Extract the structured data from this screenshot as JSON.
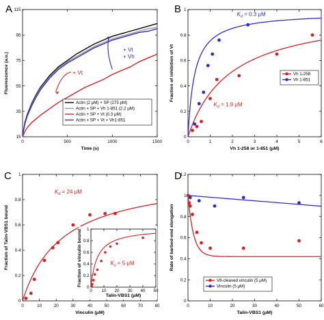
{
  "colors": {
    "red": "#d62020",
    "blue": "#2b2bcc",
    "black": "#000000",
    "gray": "#9a9a9a"
  },
  "chart_data": [
    {
      "panel": "A",
      "type": "line",
      "xlabel": "Time (s)",
      "ylabel": "Fluorescence (a.u.)",
      "xlim": [
        0,
        1500
      ],
      "ylim": [
        15,
        115
      ],
      "xticks": [
        "0",
        "500",
        "1000",
        "1500"
      ],
      "yticks": [
        "15",
        "35",
        "55",
        "75",
        "95",
        "115"
      ],
      "legend_position": "bottom-right",
      "series": [
        {
          "name": "Actin (2 μM) + SP (275 pM)",
          "color": "#000000",
          "x": [
            0,
            25,
            50,
            100,
            150,
            200,
            300,
            400,
            500,
            600,
            700,
            800,
            900,
            1000,
            1100,
            1200,
            1300,
            1400,
            1500
          ],
          "values": [
            16,
            26,
            32,
            41,
            48,
            54,
            63,
            70,
            75,
            80,
            84,
            88,
            91,
            94,
            96,
            98,
            100,
            102,
            104
          ]
        },
        {
          "name": "Actin + SP + Vh 1-851 (2.2 μM)",
          "color": "#9a9a9a",
          "x": [
            0,
            25,
            50,
            100,
            150,
            200,
            300,
            400,
            500,
            600,
            700,
            800,
            900,
            1000,
            1100,
            1200,
            1300,
            1400,
            1500
          ],
          "values": [
            16,
            25,
            31,
            40,
            47,
            53,
            62,
            69,
            74,
            78,
            82,
            86,
            89,
            92,
            94,
            96,
            98,
            100,
            101
          ]
        },
        {
          "name": "Actin + SP + Vt (0.3 μM)",
          "color": "#d62020",
          "x": [
            0,
            25,
            50,
            100,
            150,
            200,
            300,
            400,
            500,
            600,
            700,
            800,
            900,
            1000,
            1100,
            1200,
            1300,
            1400,
            1500
          ],
          "values": [
            15,
            19,
            22,
            26,
            29,
            32,
            37,
            42,
            46,
            50,
            54,
            57,
            60,
            64,
            67,
            70,
            74,
            77,
            80
          ]
        },
        {
          "name": "Actin + SP + Vt + Vh1-851",
          "color": "#2b2bcc",
          "x": [
            0,
            25,
            50,
            100,
            150,
            200,
            300,
            400,
            500,
            600,
            700,
            800,
            900,
            1000,
            1100,
            1200,
            1300,
            1400,
            1500
          ],
          "values": [
            16,
            25,
            31,
            39,
            46,
            52,
            61,
            68,
            73,
            77,
            81,
            85,
            88,
            91,
            93,
            95,
            97,
            98,
            100
          ]
        }
      ],
      "annotations": [
        "+ Vt",
        "+ Vt\n+ Vh"
      ]
    },
    {
      "panel": "B",
      "type": "scatter",
      "xlabel": "Vh 1-258 or 1-851 (μM)",
      "ylabel": "Fraction of inhibition of Vt",
      "xlim": [
        0,
        6
      ],
      "ylim": [
        0,
        1
      ],
      "xticks": [
        "0",
        "1",
        "2",
        "3",
        "4",
        "5",
        "6"
      ],
      "yticks": [
        "0",
        "0.2",
        "0.4",
        "0.6",
        "0.8",
        "1"
      ],
      "legend_position": "center-right",
      "series": [
        {
          "name": "Vh 1-258",
          "color": "#d62020",
          "kd": "K_d = 1.9 μM",
          "x": [
            0.2,
            0.4,
            0.6,
            1.0,
            1.3,
            2.3,
            4.0,
            5.6
          ],
          "values": [
            0.05,
            0.08,
            0.12,
            0.3,
            0.45,
            0.48,
            0.65,
            0.8
          ]
        },
        {
          "name": "Vh 1-851",
          "color": "#2b2bcc",
          "kd": "K_d = 0.3 μM",
          "x": [
            0.3,
            0.5,
            0.7,
            0.9,
            1.1,
            1.4,
            2.7
          ],
          "values": [
            0.1,
            0.26,
            0.35,
            0.56,
            0.65,
            0.76,
            0.88
          ]
        }
      ]
    },
    {
      "panel": "C",
      "type": "scatter",
      "xlabel": "Vinculin (μM)",
      "ylabel": "Fraction of Talin-VBS1 bound",
      "xlim": [
        0,
        80
      ],
      "ylim": [
        0,
        1
      ],
      "xticks": [
        "0",
        "10",
        "20",
        "30",
        "40",
        "50",
        "60",
        "70",
        "80"
      ],
      "yticks": [
        "0",
        "0.2",
        "0.4",
        "0.6",
        "0.8",
        "1"
      ],
      "kd": "K_d = 24 μM",
      "series": [
        {
          "name": "Talin-VBS1",
          "color": "#d62020",
          "x": [
            2,
            5,
            7,
            13,
            18,
            21,
            30,
            40,
            49,
            55
          ],
          "values": [
            0.02,
            0.06,
            0.17,
            0.32,
            0.42,
            0.46,
            0.6,
            0.68,
            0.69,
            0.69
          ]
        }
      ],
      "inset": {
        "xlabel": "Talin-VBS1 (μM)",
        "ylabel": "Fraction of vinculin bound",
        "xlim": [
          0,
          50
        ],
        "ylim": [
          0,
          1
        ],
        "xticks": [
          "0",
          "10",
          "20",
          "30",
          "40",
          "50"
        ],
        "yticks": [
          "0",
          "0.2",
          "0.4",
          "0.6",
          "0.8",
          "1"
        ],
        "kd": "K_d = 5 μM",
        "x": [
          0.5,
          1,
          2,
          3,
          5,
          8,
          11,
          15,
          20,
          40
        ],
        "values": [
          0.02,
          0.05,
          0.12,
          0.22,
          0.3,
          0.45,
          0.6,
          0.7,
          0.75,
          0.85
        ]
      }
    },
    {
      "panel": "D",
      "type": "scatter",
      "xlabel": "Talin-VBS1 (μM)",
      "ylabel": "Rate of barbed-end elongation",
      "xlim": [
        0,
        60
      ],
      "ylim": [
        0,
        1.2
      ],
      "xticks": [
        "0",
        "10",
        "20",
        "30",
        "40",
        "50",
        "60"
      ],
      "yticks": [
        "0",
        "0.2",
        "0.4",
        "0.6",
        "0.8",
        "1",
        "1.2"
      ],
      "legend_position": "bottom-left",
      "series": [
        {
          "name": "V8-cleaved vinculin (5 μM)",
          "color": "#d62020",
          "x": [
            0,
            0.5,
            1,
            2,
            4,
            6,
            10,
            25,
            50
          ],
          "values": [
            1.0,
            0.93,
            0.9,
            0.82,
            0.65,
            0.55,
            0.5,
            0.5,
            0.57
          ]
        },
        {
          "name": "Vinculin (5 μM)",
          "color": "#2b2bcc",
          "x": [
            1,
            5,
            12,
            25,
            50
          ],
          "values": [
            0.98,
            0.95,
            0.9,
            0.98,
            0.93
          ]
        }
      ]
    }
  ]
}
